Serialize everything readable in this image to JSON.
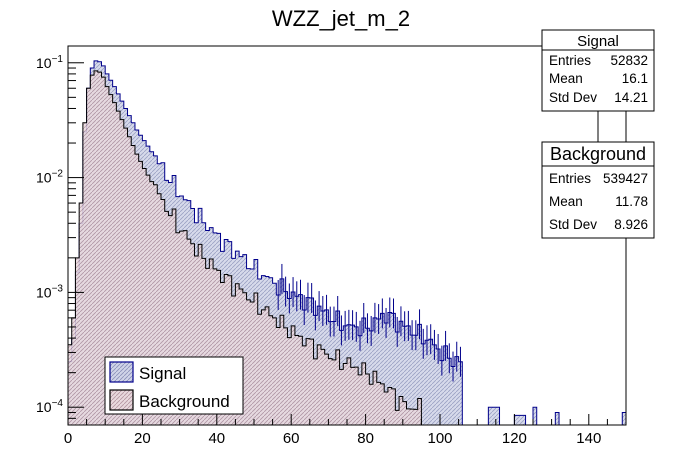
{
  "chart_data": {
    "type": "histogram",
    "title": "WZZ_jet_m_2",
    "xlabel": "",
    "ylabel": "",
    "xlim": [
      0,
      150
    ],
    "ylim": [
      7e-05,
      0.14
    ],
    "yscale": "log",
    "bin_width": 1,
    "x_ticks": [
      0,
      20,
      40,
      60,
      80,
      100,
      120,
      140
    ],
    "x_tick_labels": [
      "0",
      "20",
      "40",
      "60",
      "80",
      "100",
      "120",
      "140"
    ],
    "y_ticks": [
      0.1,
      0.01,
      0.001,
      0.0001
    ],
    "y_tick_labels": [
      {
        "base": "10",
        "exp": "−1"
      },
      {
        "base": "10",
        "exp": "−2"
      },
      {
        "base": "10",
        "exp": "−3"
      },
      {
        "base": "10",
        "exp": "−4"
      }
    ],
    "series": [
      {
        "name": "Signal",
        "line_color": "#00008b",
        "fill_color": "#d0d4e8",
        "hatch": "diagonal",
        "points": [
          [
            0,
            0.00025
          ],
          [
            1,
            0.0004
          ],
          [
            2,
            0.0015
          ],
          [
            3,
            0.004
          ],
          [
            4,
            0.025
          ],
          [
            5,
            0.06
          ],
          [
            6,
            0.09
          ],
          [
            7,
            0.104
          ],
          [
            8,
            0.102
          ],
          [
            9,
            0.094
          ],
          [
            10,
            0.08
          ],
          [
            12,
            0.062
          ],
          [
            15,
            0.04
          ],
          [
            18,
            0.026
          ],
          [
            20,
            0.021
          ],
          [
            25,
            0.012
          ],
          [
            30,
            0.007
          ],
          [
            35,
            0.0045
          ],
          [
            40,
            0.003
          ],
          [
            45,
            0.0022
          ],
          [
            50,
            0.0016
          ],
          [
            55,
            0.0012
          ],
          [
            60,
            0.00095
          ],
          [
            65,
            0.0008
          ],
          [
            70,
            0.00062
          ],
          [
            75,
            0.0005
          ],
          [
            80,
            0.0005
          ],
          [
            85,
            0.00065
          ],
          [
            90,
            0.0005
          ],
          [
            95,
            0.00042
          ],
          [
            100,
            0.0003
          ],
          [
            104,
            0.00025
          ],
          [
            106,
            0
          ],
          [
            110,
            0
          ],
          [
            113,
            0.0001
          ],
          [
            116,
            0
          ],
          [
            120,
            8.5e-05
          ],
          [
            123,
            0
          ],
          [
            125,
            0.0001
          ],
          [
            126,
            0
          ],
          [
            131,
            9e-05
          ],
          [
            132,
            0
          ],
          [
            149,
            9e-05
          ],
          [
            150,
            0
          ]
        ]
      },
      {
        "name": "Background",
        "line_color": "#000000",
        "fill_color": "#e9d9de",
        "hatch": "diagonal",
        "points": [
          [
            0,
            0.00035
          ],
          [
            1,
            0.0006
          ],
          [
            2,
            0.002
          ],
          [
            3,
            0.006
          ],
          [
            4,
            0.03
          ],
          [
            5,
            0.06
          ],
          [
            6,
            0.078
          ],
          [
            7,
            0.085
          ],
          [
            8,
            0.083
          ],
          [
            9,
            0.075
          ],
          [
            10,
            0.062
          ],
          [
            12,
            0.045
          ],
          [
            15,
            0.027
          ],
          [
            18,
            0.016
          ],
          [
            20,
            0.012
          ],
          [
            25,
            0.0062
          ],
          [
            30,
            0.0035
          ],
          [
            35,
            0.0022
          ],
          [
            40,
            0.0015
          ],
          [
            45,
            0.0011
          ],
          [
            50,
            0.00082
          ],
          [
            55,
            0.0006
          ],
          [
            60,
            0.00045
          ],
          [
            65,
            0.00035
          ],
          [
            70,
            0.00028
          ],
          [
            75,
            0.00024
          ],
          [
            80,
            0.0002
          ],
          [
            85,
            0.00015
          ],
          [
            88,
            0.00012
          ],
          [
            91,
            0.0001
          ],
          [
            95,
            0
          ],
          [
            150,
            0
          ]
        ]
      }
    ],
    "legend": {
      "position": "bottom-left",
      "entries": [
        "Signal",
        "Background"
      ]
    },
    "stats_boxes": [
      {
        "title": "Signal",
        "rows": [
          {
            "label": "Entries",
            "value": "52832"
          },
          {
            "label": "Mean",
            "value": "16.1"
          },
          {
            "label": "Std Dev",
            "value": "14.21"
          }
        ]
      },
      {
        "title": "Background",
        "rows": [
          {
            "label": "Entries",
            "value": "539427"
          },
          {
            "label": "Mean",
            "value": "11.78"
          },
          {
            "label": "Std Dev",
            "value": "8.926"
          }
        ]
      }
    ]
  }
}
